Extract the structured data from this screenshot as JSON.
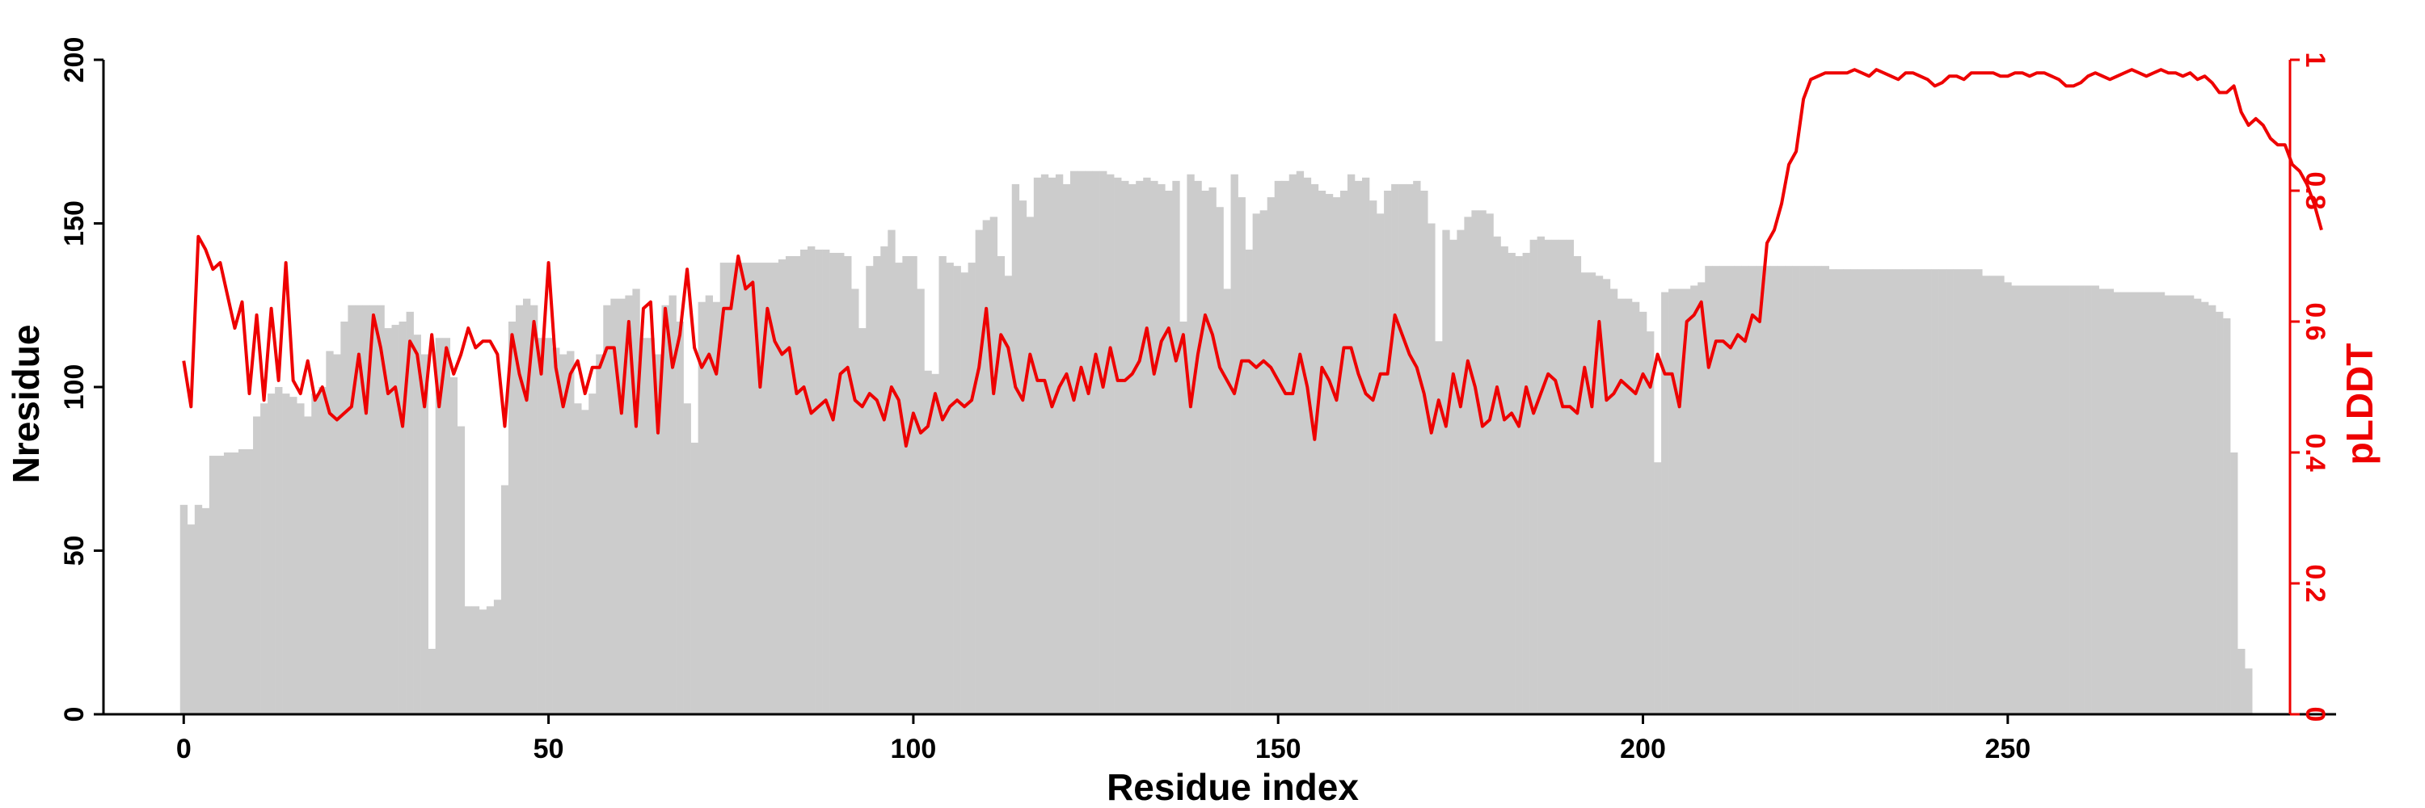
{
  "chart_data": {
    "type": "bar+line",
    "xlabel": "Residue index",
    "ylabel_left": "Nresidue",
    "ylabel_right": "pLDDT",
    "xlim": [
      -11,
      295
    ],
    "ylim_left": [
      0,
      200
    ],
    "ylim_right": [
      0,
      1
    ],
    "xticks": [
      0,
      50,
      100,
      150,
      200,
      250
    ],
    "xtick_labels": [
      "0",
      "50",
      "100",
      "150",
      "200",
      "250"
    ],
    "yticks_left": [
      0,
      50,
      100,
      150,
      200
    ],
    "ytick_labels_left": [
      "0",
      "50",
      "100",
      "150",
      "200"
    ],
    "yticks_right": [
      0,
      0.2,
      0.4,
      0.6,
      0.8,
      1
    ],
    "ytick_labels_right": [
      "0",
      "0.2",
      "0.4",
      "0.6",
      "0.8",
      "1"
    ],
    "grid": false,
    "colors": {
      "bars": "#cccccc",
      "line": "#ee0000",
      "right_axis": "#ee0000",
      "left_axis": "#000000"
    },
    "series": [
      {
        "kind": "bar",
        "axis": "left",
        "x_start": 0,
        "values": [
          64,
          58,
          64,
          63,
          79,
          79,
          80,
          80,
          81,
          81,
          91,
          95,
          98,
          100,
          98,
          97,
          95,
          91,
          98,
          100,
          111,
          110,
          120,
          125,
          125,
          125,
          125,
          125,
          118,
          119,
          120,
          123,
          116,
          110,
          20,
          115,
          115,
          103,
          88,
          33,
          33,
          32,
          33,
          35,
          70,
          120,
          125,
          127,
          125,
          115,
          115,
          112,
          110,
          111,
          95,
          93,
          98,
          110,
          125,
          127,
          127,
          128,
          130,
          115,
          115,
          110,
          125,
          128,
          120,
          95,
          83,
          126,
          128,
          126,
          138,
          138,
          138,
          138,
          138,
          138,
          138,
          138,
          139,
          140,
          140,
          142,
          143,
          142,
          142,
          141,
          141,
          140,
          130,
          118,
          137,
          140,
          143,
          148,
          138,
          140,
          140,
          130,
          105,
          104,
          140,
          138,
          137,
          135,
          138,
          148,
          151,
          152,
          140,
          134,
          162,
          157,
          152,
          164,
          165,
          164,
          165,
          162,
          166,
          166,
          166,
          166,
          166,
          165,
          164,
          163,
          162,
          163,
          164,
          163,
          162,
          160,
          163,
          120,
          165,
          163,
          160,
          161,
          155,
          130,
          165,
          158,
          142,
          153,
          154,
          158,
          163,
          163,
          165,
          166,
          164,
          162,
          160,
          159,
          158,
          160,
          165,
          163,
          164,
          157,
          153,
          160,
          162,
          162,
          162,
          163,
          160,
          150,
          114,
          148,
          145,
          148,
          152,
          154,
          154,
          153,
          146,
          143,
          141,
          140,
          141,
          145,
          146,
          145,
          145,
          145,
          145,
          140,
          135,
          135,
          134,
          133,
          130,
          127,
          127,
          126,
          123,
          117,
          77,
          129,
          130,
          130,
          130,
          131,
          132,
          137,
          137,
          137,
          137,
          137,
          137,
          137,
          137,
          137,
          137,
          137,
          137,
          137,
          137,
          137,
          137,
          137,
          136,
          136,
          136,
          136,
          136,
          136,
          136,
          136,
          136,
          136,
          136,
          136,
          136,
          136,
          136,
          136,
          136,
          136,
          136,
          136,
          136,
          134,
          134,
          134,
          132,
          131,
          131,
          131,
          131,
          131,
          131,
          131,
          131,
          131,
          131,
          131,
          131,
          130,
          130,
          129,
          129,
          129,
          129,
          129,
          129,
          129,
          128,
          128,
          128,
          128,
          127,
          126,
          125,
          123,
          121,
          80,
          20,
          14
        ]
      },
      {
        "kind": "line",
        "axis": "right",
        "x_start": 0,
        "values": [
          0.54,
          0.47,
          0.73,
          0.71,
          0.68,
          0.69,
          0.64,
          0.59,
          0.63,
          0.49,
          0.61,
          0.48,
          0.62,
          0.51,
          0.69,
          0.51,
          0.49,
          0.54,
          0.48,
          0.5,
          0.46,
          0.45,
          0.46,
          0.47,
          0.55,
          0.46,
          0.61,
          0.56,
          0.49,
          0.5,
          0.44,
          0.57,
          0.55,
          0.47,
          0.58,
          0.47,
          0.56,
          0.52,
          0.55,
          0.59,
          0.56,
          0.57,
          0.57,
          0.55,
          0.44,
          0.58,
          0.52,
          0.48,
          0.6,
          0.52,
          0.69,
          0.53,
          0.47,
          0.52,
          0.54,
          0.49,
          0.53,
          0.53,
          0.56,
          0.56,
          0.46,
          0.6,
          0.44,
          0.62,
          0.63,
          0.43,
          0.62,
          0.53,
          0.58,
          0.68,
          0.56,
          0.53,
          0.55,
          0.52,
          0.62,
          0.62,
          0.7,
          0.65,
          0.66,
          0.5,
          0.62,
          0.57,
          0.55,
          0.56,
          0.49,
          0.5,
          0.46,
          0.47,
          0.48,
          0.45,
          0.52,
          0.53,
          0.48,
          0.47,
          0.49,
          0.48,
          0.45,
          0.5,
          0.48,
          0.41,
          0.46,
          0.43,
          0.44,
          0.49,
          0.45,
          0.47,
          0.48,
          0.47,
          0.48,
          0.53,
          0.62,
          0.49,
          0.58,
          0.56,
          0.5,
          0.48,
          0.55,
          0.51,
          0.51,
          0.47,
          0.5,
          0.52,
          0.48,
          0.53,
          0.49,
          0.55,
          0.5,
          0.56,
          0.51,
          0.51,
          0.52,
          0.54,
          0.59,
          0.52,
          0.57,
          0.59,
          0.54,
          0.58,
          0.47,
          0.55,
          0.61,
          0.58,
          0.53,
          0.51,
          0.49,
          0.54,
          0.54,
          0.53,
          0.54,
          0.53,
          0.51,
          0.49,
          0.49,
          0.55,
          0.5,
          0.42,
          0.53,
          0.51,
          0.48,
          0.56,
          0.56,
          0.52,
          0.49,
          0.48,
          0.52,
          0.52,
          0.61,
          0.58,
          0.55,
          0.53,
          0.49,
          0.43,
          0.48,
          0.44,
          0.52,
          0.47,
          0.54,
          0.5,
          0.44,
          0.45,
          0.5,
          0.45,
          0.46,
          0.44,
          0.5,
          0.46,
          0.49,
          0.52,
          0.51,
          0.47,
          0.47,
          0.46,
          0.53,
          0.47,
          0.6,
          0.48,
          0.49,
          0.51,
          0.5,
          0.49,
          0.52,
          0.5,
          0.55,
          0.52,
          0.52,
          0.47,
          0.6,
          0.61,
          0.63,
          0.53,
          0.57,
          0.57,
          0.56,
          0.58,
          0.57,
          0.61,
          0.6,
          0.72,
          0.74,
          0.78,
          0.84,
          0.86,
          0.94,
          0.97,
          0.975,
          0.98,
          0.98,
          0.98,
          0.98,
          0.985,
          0.98,
          0.975,
          0.985,
          0.98,
          0.975,
          0.97,
          0.98,
          0.98,
          0.975,
          0.97,
          0.96,
          0.965,
          0.975,
          0.975,
          0.97,
          0.98,
          0.98,
          0.98,
          0.98,
          0.975,
          0.975,
          0.98,
          0.98,
          0.975,
          0.98,
          0.98,
          0.975,
          0.97,
          0.96,
          0.96,
          0.965,
          0.975,
          0.98,
          0.975,
          0.97,
          0.975,
          0.98,
          0.985,
          0.98,
          0.975,
          0.98,
          0.985,
          0.98,
          0.98,
          0.975,
          0.98,
          0.97,
          0.975,
          0.965,
          0.95,
          0.95,
          0.96,
          0.92,
          0.9,
          0.91,
          0.9,
          0.88,
          0.87,
          0.87,
          0.84,
          0.83,
          0.81,
          0.78,
          0.74
        ]
      }
    ]
  }
}
